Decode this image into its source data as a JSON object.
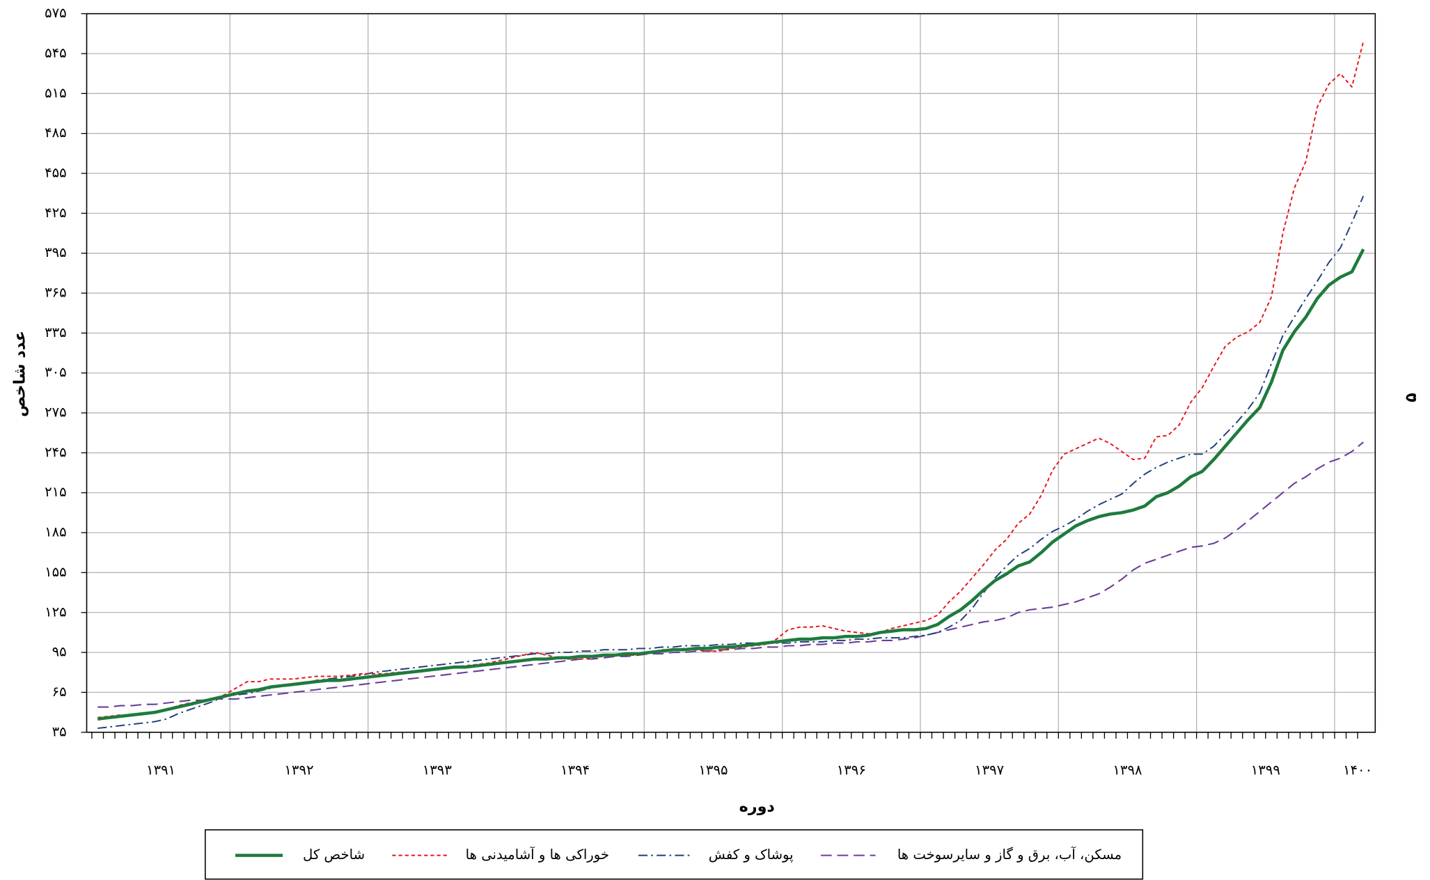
{
  "chart_data": {
    "type": "line",
    "y_label": "عدد شاخص",
    "x_label": "دوره",
    "page_number": "۵",
    "grid": true,
    "legend": "bottom",
    "ylim": [
      35,
      575
    ],
    "yticks": [
      {
        "value": 35,
        "label": "۳۵"
      },
      {
        "value": 65,
        "label": "۶۵"
      },
      {
        "value": 95,
        "label": "۹۵"
      },
      {
        "value": 125,
        "label": "۱۲۵"
      },
      {
        "value": 155,
        "label": "۱۵۵"
      },
      {
        "value": 185,
        "label": "۱۸۵"
      },
      {
        "value": 215,
        "label": "۲۱۵"
      },
      {
        "value": 245,
        "label": "۲۴۵"
      },
      {
        "value": 275,
        "label": "۲۷۵"
      },
      {
        "value": 305,
        "label": "۳۰۵"
      },
      {
        "value": 335,
        "label": "۳۳۵"
      },
      {
        "value": 365,
        "label": "۳۶۵"
      },
      {
        "value": 395,
        "label": "۳۹۵"
      },
      {
        "value": 425,
        "label": "۴۲۵"
      },
      {
        "value": 455,
        "label": "۴۵۵"
      },
      {
        "value": 485,
        "label": "۴۸۵"
      },
      {
        "value": 515,
        "label": "۵۱۵"
      },
      {
        "value": 545,
        "label": "۵۴۵"
      },
      {
        "value": 575,
        "label": "۵۷۵"
      }
    ],
    "categories": [
      null,
      null,
      null,
      null,
      null,
      null,
      "۱۳۹۱",
      null,
      null,
      null,
      null,
      null,
      null,
      null,
      null,
      null,
      null,
      null,
      "۱۳۹۲",
      null,
      null,
      null,
      null,
      null,
      null,
      null,
      null,
      null,
      null,
      null,
      "۱۳۹۳",
      null,
      null,
      null,
      null,
      null,
      null,
      null,
      null,
      null,
      null,
      null,
      "۱۳۹۴",
      null,
      null,
      null,
      null,
      null,
      null,
      null,
      null,
      null,
      null,
      null,
      "۱۳۹۵",
      null,
      null,
      null,
      null,
      null,
      null,
      null,
      null,
      null,
      null,
      null,
      "۱۳۹۶",
      null,
      null,
      null,
      null,
      null,
      null,
      null,
      null,
      null,
      null,
      null,
      "۱۳۹۷",
      null,
      null,
      null,
      null,
      null,
      null,
      null,
      null,
      null,
      null,
      null,
      "۱۳۹۸",
      null,
      null,
      null,
      null,
      null,
      null,
      null,
      null,
      null,
      null,
      null,
      "۱۳۹۹",
      null,
      null,
      null,
      null,
      null,
      null,
      null,
      "۱۴۰۰"
    ],
    "series": [
      {
        "name": "شاخص کل",
        "color": "#1e7b3c",
        "style": "solid",
        "values": [
          45,
          46,
          47,
          48,
          49,
          50,
          52,
          54,
          56,
          58,
          60,
          62,
          64,
          66,
          67,
          69,
          70,
          71,
          72,
          73,
          74,
          74,
          75,
          76,
          77,
          78,
          79,
          80,
          81,
          82,
          83,
          84,
          84,
          85,
          86,
          87,
          88,
          89,
          90,
          90,
          91,
          91,
          92,
          92,
          93,
          93,
          94,
          94,
          95,
          96,
          97,
          97,
          98,
          98,
          99,
          99,
          100,
          101,
          102,
          103,
          104,
          105,
          105,
          106,
          106,
          107,
          107,
          108,
          110,
          111,
          112,
          112,
          113,
          116,
          122,
          127,
          134,
          142,
          149,
          154,
          160,
          163,
          170,
          178,
          184,
          190,
          194,
          197,
          199,
          200,
          202,
          205,
          212,
          215,
          220,
          227,
          231,
          240,
          250,
          260,
          270,
          279,
          298,
          322,
          336,
          347,
          361,
          371,
          377,
          381,
          398
        ]
      },
      {
        "name": "خوراکی ها و آشامیدنی ها",
        "color": "#e8141c",
        "style": "dashed",
        "values": [
          46,
          47,
          48,
          48,
          49,
          50,
          52,
          55,
          57,
          58,
          60,
          63,
          68,
          73,
          73,
          75,
          75,
          75,
          76,
          77,
          77,
          77,
          78,
          79,
          79,
          79,
          80,
          80,
          81,
          82,
          83,
          84,
          85,
          86,
          87,
          89,
          91,
          93,
          95,
          93,
          91,
          90,
          90,
          91,
          92,
          93,
          93,
          93,
          95,
          97,
          97,
          98,
          97,
          96,
          96,
          98,
          99,
          100,
          101,
          105,
          112,
          114,
          114,
          115,
          113,
          111,
          110,
          109,
          110,
          113,
          115,
          117,
          119,
          123,
          133,
          141,
          151,
          161,
          172,
          180,
          192,
          199,
          213,
          232,
          244,
          248,
          252,
          256,
          252,
          246,
          240,
          241,
          257,
          258,
          266,
          283,
          294,
          310,
          325,
          332,
          336,
          343,
          362,
          410,
          444,
          464,
          505,
          522,
          530,
          520,
          554
        ]
      },
      {
        "name": "پوشاک و کفش",
        "color": "#1f3f7a",
        "style": "dashdot",
        "values": [
          38,
          39,
          40,
          41,
          42,
          43,
          45,
          49,
          52,
          55,
          58,
          62,
          63,
          64,
          66,
          68,
          70,
          71,
          72,
          74,
          75,
          76,
          77,
          78,
          80,
          81,
          82,
          83,
          84,
          85,
          86,
          87,
          88,
          89,
          90,
          91,
          92,
          93,
          94,
          94,
          95,
          95,
          96,
          96,
          97,
          97,
          97,
          98,
          98,
          99,
          99,
          100,
          100,
          100,
          101,
          101,
          102,
          102,
          102,
          102,
          102,
          103,
          103,
          103,
          104,
          104,
          105,
          105,
          106,
          106,
          106,
          107,
          108,
          110,
          114,
          119,
          128,
          140,
          151,
          160,
          168,
          173,
          180,
          186,
          190,
          195,
          201,
          206,
          210,
          214,
          222,
          229,
          234,
          238,
          241,
          244,
          244,
          250,
          259,
          268,
          278,
          290,
          312,
          333,
          347,
          361,
          374,
          388,
          399,
          418,
          438
        ]
      },
      {
        "name": "مسکن، آب، برق و گاز و سایرسوخت ها",
        "color": "#6a3d9a",
        "style": "longdash",
        "values": [
          54,
          54,
          55,
          55,
          56,
          56,
          57,
          58,
          59,
          59,
          60,
          60,
          60,
          61,
          62,
          63,
          64,
          65,
          66,
          67,
          68,
          69,
          70,
          71,
          72,
          73,
          74,
          75,
          76,
          77,
          78,
          79,
          80,
          81,
          82,
          83,
          84,
          85,
          86,
          87,
          88,
          89,
          90,
          90,
          91,
          92,
          92,
          93,
          94,
          94,
          95,
          95,
          96,
          96,
          97,
          97,
          98,
          98,
          99,
          99,
          100,
          100,
          101,
          101,
          102,
          102,
          103,
          103,
          104,
          104,
          105,
          106,
          108,
          110,
          112,
          114,
          116,
          118,
          119,
          121,
          125,
          127,
          128,
          129,
          131,
          133,
          136,
          139,
          144,
          150,
          157,
          162,
          165,
          168,
          171,
          174,
          175,
          177,
          181,
          187,
          194,
          201,
          208,
          215,
          222,
          227,
          233,
          238,
          241,
          246,
          253
        ]
      }
    ]
  }
}
